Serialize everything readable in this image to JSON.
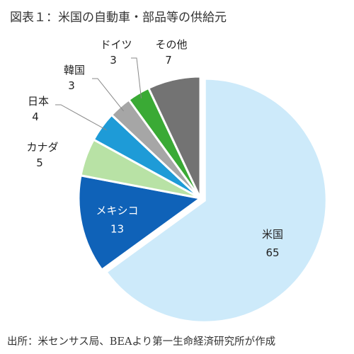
{
  "title": "図表１：米国の自動車・部品等の供給元",
  "source": "出所：米センサス局、BEAより第一生命経済研究所が作成",
  "chart_data": {
    "type": "pie",
    "title": "図表１：米国の自動車・部品等の供給元",
    "slices": [
      {
        "label": "米国",
        "value": 65,
        "color": "#cdeafa",
        "label_color": "#222222",
        "label_pos": "inside"
      },
      {
        "label": "メキシコ",
        "value": 13,
        "color": "#0f62b8",
        "label_color": "#ffffff",
        "label_pos": "inside"
      },
      {
        "label": "カナダ",
        "value": 5,
        "color": "#b8e2a5",
        "label_color": "#222222",
        "label_pos": "outside"
      },
      {
        "label": "日本",
        "value": 4,
        "color": "#1e9bd7",
        "label_color": "#222222",
        "label_pos": "outside"
      },
      {
        "label": "韓国",
        "value": 3,
        "color": "#a6a6a6",
        "label_color": "#222222",
        "label_pos": "outside"
      },
      {
        "label": "ドイツ",
        "value": 3,
        "color": "#3aaa35",
        "label_color": "#222222",
        "label_pos": "outside"
      },
      {
        "label": "その他",
        "value": 7,
        "color": "#737373",
        "label_color": "#222222",
        "label_pos": "outside"
      }
    ],
    "start": "12 o'clock",
    "direction": "clockwise",
    "exploded_slice": "米国",
    "legend": "none"
  }
}
